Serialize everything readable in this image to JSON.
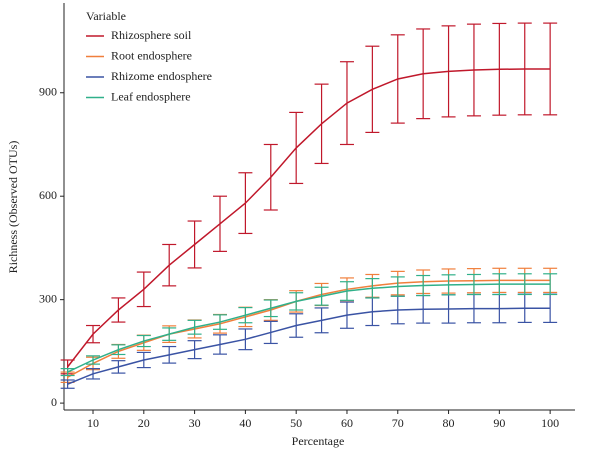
{
  "chart_data": {
    "type": "line",
    "x_label": "Percentage",
    "y_label": "Richness (Observed OTUs)",
    "legend_title": "Variable",
    "legend": "upper left",
    "x": [
      5,
      10,
      15,
      20,
      25,
      30,
      35,
      40,
      45,
      50,
      55,
      60,
      65,
      70,
      75,
      80,
      85,
      90,
      95,
      100
    ],
    "xlim": [
      3.5,
      104.5
    ],
    "xticks": [
      10,
      20,
      30,
      40,
      50,
      60,
      70,
      80,
      90,
      100
    ],
    "ylim": [
      -20,
      1140
    ],
    "yticks": [
      0,
      300,
      600,
      900
    ],
    "series": [
      {
        "name": "Rhizosphere soil",
        "color": "#c0182b",
        "values": [
          105,
          200,
          270,
          330,
          400,
          460,
          520,
          580,
          655,
          740,
          810,
          870,
          910,
          940,
          955,
          962,
          966,
          968,
          969,
          969
        ],
        "errors": [
          20,
          25,
          35,
          50,
          60,
          68,
          80,
          88,
          95,
          103,
          115,
          120,
          125,
          128,
          130,
          132,
          133,
          133,
          133,
          133
        ]
      },
      {
        "name": "Root endosphere",
        "color": "#f07f3c",
        "values": [
          75,
          115,
          150,
          175,
          200,
          215,
          230,
          250,
          270,
          295,
          315,
          330,
          340,
          348,
          352,
          354,
          355,
          356,
          356,
          356
        ],
        "errors": [
          15,
          18,
          20,
          22,
          24,
          26,
          27,
          28,
          30,
          31,
          32,
          33,
          33,
          34,
          34,
          35,
          35,
          35,
          35,
          35
        ]
      },
      {
        "name": "Rhizome endosphere",
        "color": "#3a53a4",
        "values": [
          55,
          85,
          105,
          125,
          140,
          155,
          170,
          185,
          205,
          225,
          240,
          255,
          265,
          270,
          272,
          273,
          274,
          274,
          275,
          275
        ],
        "errors": [
          12,
          15,
          18,
          22,
          24,
          26,
          28,
          30,
          32,
          34,
          36,
          38,
          40,
          40,
          40,
          41,
          41,
          41,
          41,
          41
        ]
      },
      {
        "name": "Leaf endosphere",
        "color": "#30b08a",
        "values": [
          90,
          125,
          155,
          180,
          200,
          220,
          235,
          255,
          275,
          295,
          310,
          325,
          333,
          338,
          341,
          343,
          344,
          345,
          345,
          345
        ],
        "errors": [
          10,
          12,
          14,
          16,
          18,
          20,
          21,
          22,
          24,
          25,
          26,
          27,
          28,
          28,
          29,
          29,
          29,
          30,
          30,
          30
        ]
      }
    ]
  }
}
